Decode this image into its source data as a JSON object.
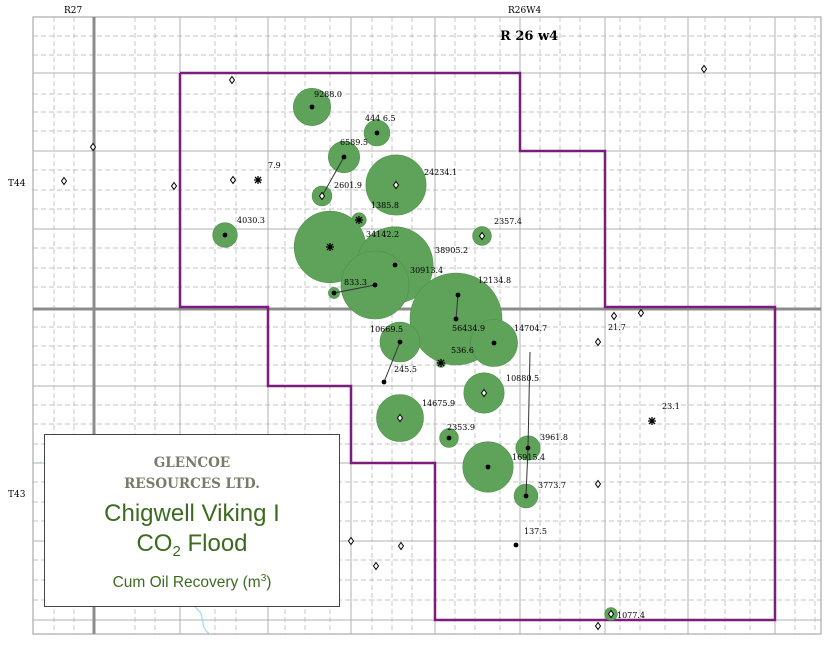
{
  "map": {
    "range_labels": {
      "west": "R27",
      "east": "R26W4"
    },
    "range_title": "R 26 w4",
    "township_labels": {
      "north": "T44",
      "south": "T43"
    }
  },
  "legend": {
    "company_line1": "GLENCOE",
    "company_line2": "RESOURCES LTD.",
    "project": "Chigwell Viking I",
    "subject_prefix": "CO",
    "subject_sub": "2",
    "subject_suffix": " Flood",
    "caption_prefix": "Cum Oil Recovery  (m",
    "caption_sup": "3",
    "caption_suffix": ")"
  },
  "wells": [
    {
      "label": "9288.0",
      "cum_oil": 9288.0
    },
    {
      "label": "444 6.5",
      "cum_oil": 4446.5
    },
    {
      "label": "6589.5",
      "cum_oil": 6589.5
    },
    {
      "label": "7.9",
      "cum_oil": 7.9
    },
    {
      "label": "24234.1",
      "cum_oil": 24234.1
    },
    {
      "label": "2601.9",
      "cum_oil": 2601.9
    },
    {
      "label": "1385.8",
      "cum_oil": 1385.8
    },
    {
      "label": "4030.3",
      "cum_oil": 4030.3
    },
    {
      "label": "2357.4",
      "cum_oil": 2357.4
    },
    {
      "label": "34142.2",
      "cum_oil": 34142.2
    },
    {
      "label": "38905.2",
      "cum_oil": 38905.2
    },
    {
      "label": "30913.4",
      "cum_oil": 30913.4
    },
    {
      "label": "833.3",
      "cum_oil": 833.3
    },
    {
      "label": "12134.8",
      "cum_oil": 12134.8
    },
    {
      "label": "56434.9",
      "cum_oil": 56434.9
    },
    {
      "label": "10669.5",
      "cum_oil": 10669.5
    },
    {
      "label": "14704.7",
      "cum_oil": 14704.7
    },
    {
      "label": "21.7",
      "cum_oil": 21.7
    },
    {
      "label": "536.6",
      "cum_oil": 536.6
    },
    {
      "label": "245.5",
      "cum_oil": 245.5
    },
    {
      "label": "10880.5",
      "cum_oil": 10880.5
    },
    {
      "label": "14675.9",
      "cum_oil": 14675.9
    },
    {
      "label": "23.1",
      "cum_oil": 23.1
    },
    {
      "label": "2353.9",
      "cum_oil": 2353.9
    },
    {
      "label": "3961.8",
      "cum_oil": 3961.8
    },
    {
      "label": "16915.4",
      "cum_oil": 16915.4
    },
    {
      "label": "3773.7",
      "cum_oil": 3773.7
    },
    {
      "label": "137.5",
      "cum_oil": 137.5
    },
    {
      "label": "1077.4",
      "cum_oil": 1077.4
    }
  ],
  "colors": {
    "bubble": "#5fa35a",
    "bubble_edge": "#4f8f4b",
    "boundary": "#7a1d7d",
    "grid_major": "#8c8c8c",
    "grid_minor": "#b0b0b0",
    "text_green": "#3c6b1f"
  },
  "icons": [
    "well-dot-icon",
    "injector-star-icon",
    "abandoned-well-icon",
    "suspended-well-icon"
  ]
}
